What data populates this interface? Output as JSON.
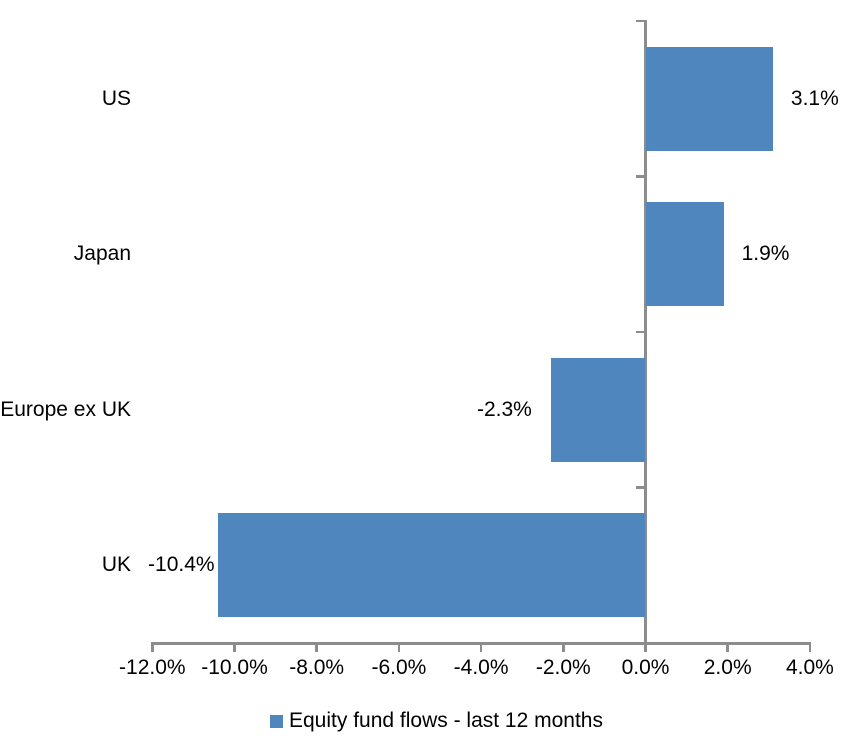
{
  "chart_data": {
    "type": "bar",
    "orientation": "horizontal",
    "title": "",
    "xlabel": "",
    "ylabel": "",
    "categories": [
      "US",
      "Japan",
      "Europe ex UK",
      "UK"
    ],
    "values": [
      3.1,
      1.9,
      -2.3,
      -10.4
    ],
    "data_labels": [
      "3.1%",
      "1.9%",
      "-2.3%",
      "-10.4%"
    ],
    "series": [
      {
        "name": "Equity fund flows - last 12 months",
        "values": [
          3.1,
          1.9,
          -2.3,
          -10.4
        ]
      }
    ],
    "xlim": [
      -12.0,
      4.0
    ],
    "x_ticks": [
      -12,
      -10,
      -8,
      -6,
      -4,
      -2,
      0,
      2,
      4
    ],
    "x_tick_labels": [
      "-12.0%",
      "-10.0%",
      "-8.0%",
      "-6.0%",
      "-4.0%",
      "-2.0%",
      "0.0%",
      "2.0%",
      "4.0%"
    ],
    "grid": false,
    "legend_position": "bottom",
    "colors": {
      "bar": "#4e86bd",
      "axis": "#8c8c8c",
      "text": "#000000",
      "background": "#ffffff"
    }
  },
  "legend": {
    "label": "Equity fund flows - last 12 months"
  }
}
